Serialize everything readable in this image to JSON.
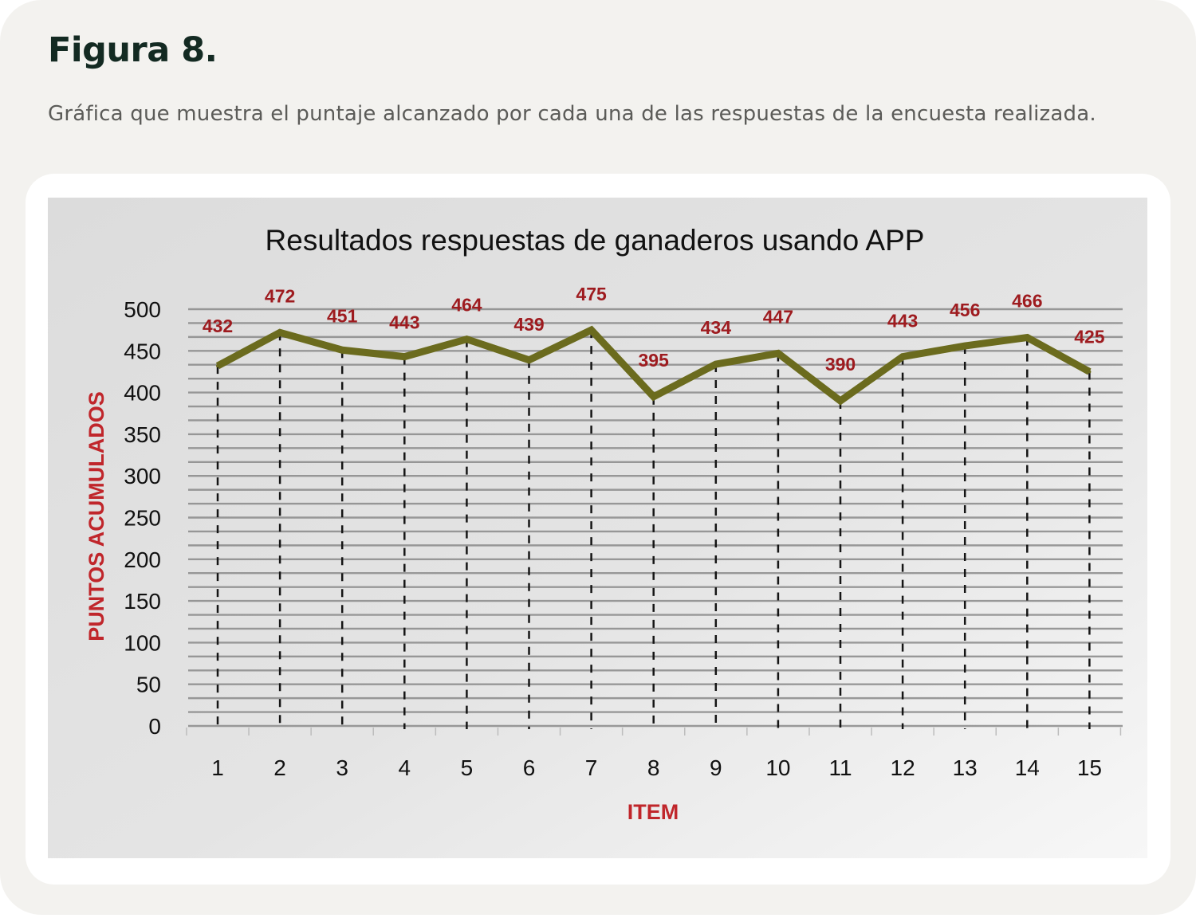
{
  "figure": {
    "title": "Figura 8.",
    "caption": "Gráfica que muestra el puntaje alcanzado por cada una de las respuestas de la encuesta realizada."
  },
  "colors": {
    "page_background": "#f3f2ef",
    "card_background": "#ffffff",
    "title_color": "#132a22",
    "caption_color": "#5b5b58",
    "line_color": "#6b6b1e",
    "label_color": "#9e1b1f",
    "axis_title_color": "#c0262b",
    "grid_color": "#8a8a8a"
  },
  "chart_data": {
    "type": "line",
    "title": "Resultados respuestas de ganaderos usando APP",
    "xlabel": "ITEM",
    "ylabel": "PUNTOS ACUMULADOS",
    "categories": [
      "1",
      "2",
      "3",
      "4",
      "5",
      "6",
      "7",
      "8",
      "9",
      "10",
      "11",
      "12",
      "13",
      "14",
      "15"
    ],
    "series": [
      {
        "name": "Puntos acumulados",
        "values": [
          432,
          472,
          451,
          443,
          464,
          439,
          475,
          395,
          434,
          447,
          390,
          443,
          456,
          466,
          425
        ]
      }
    ],
    "ylim": [
      0,
      500
    ],
    "yticks": [
      0,
      50,
      100,
      150,
      200,
      250,
      300,
      350,
      400,
      450,
      500
    ],
    "grid": true,
    "data_labels": true,
    "legend": "none"
  }
}
